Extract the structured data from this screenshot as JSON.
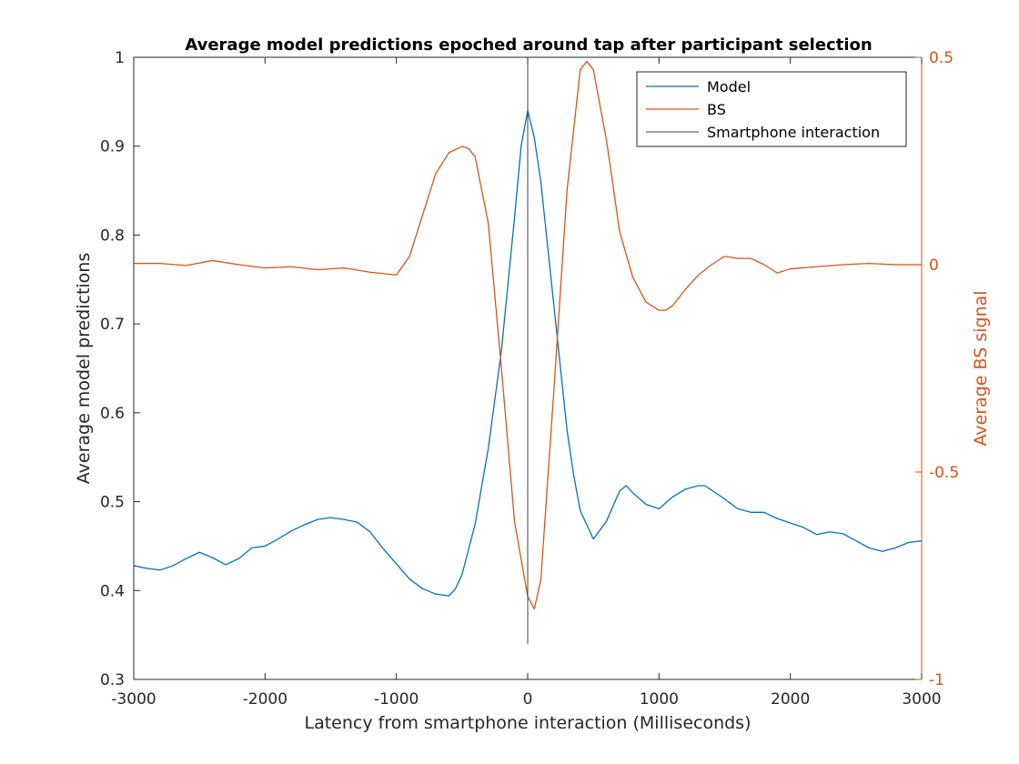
{
  "chart_data": {
    "type": "line",
    "title": "Average model predictions epoched around tap after participant selection",
    "xlabel": "Latency from smartphone interaction (Milliseconds)",
    "ylabel_left": "Average model predictions",
    "ylabel_right": "Average BS signal",
    "xlim": [
      -3000,
      3000
    ],
    "ylim_left": [
      0.3,
      1.0
    ],
    "ylim_right": [
      -1.0,
      0.5
    ],
    "xticks": [
      -3000,
      -2000,
      -1000,
      0,
      1000,
      2000,
      3000
    ],
    "yticks_left": [
      0.3,
      0.4,
      0.5,
      0.6,
      0.7,
      0.8,
      0.9,
      1.0
    ],
    "yticks_left_labels": [
      "0.3",
      "0.4",
      "0.5",
      "0.6",
      "0.7",
      "0.8",
      "0.9",
      "1"
    ],
    "yticks_right": [
      -1.0,
      -0.5,
      0.0,
      0.5
    ],
    "yticks_right_labels": [
      "-1",
      "-0.5",
      "0",
      "0.5"
    ],
    "legend_placement": "top-right",
    "grid": false,
    "colors": {
      "model": "#0072BD",
      "bs": "#D95319",
      "interaction": "#404040",
      "right_axis": "#D95319"
    },
    "series": [
      {
        "name": "Model",
        "axis": "left",
        "x": [
          -3000,
          -2900,
          -2800,
          -2700,
          -2600,
          -2500,
          -2400,
          -2300,
          -2200,
          -2100,
          -2000,
          -1900,
          -1800,
          -1700,
          -1600,
          -1500,
          -1400,
          -1300,
          -1200,
          -1100,
          -1000,
          -900,
          -800,
          -700,
          -600,
          -550,
          -500,
          -400,
          -300,
          -200,
          -100,
          -50,
          0,
          50,
          100,
          200,
          300,
          350,
          400,
          500,
          600,
          700,
          750,
          800,
          900,
          1000,
          1100,
          1200,
          1300,
          1350,
          1400,
          1500,
          1600,
          1700,
          1800,
          1900,
          2000,
          2100,
          2200,
          2300,
          2400,
          2500,
          2600,
          2700,
          2800,
          2900,
          3000
        ],
        "y": [
          0.428,
          0.425,
          0.423,
          0.428,
          0.436,
          0.443,
          0.437,
          0.429,
          0.436,
          0.448,
          0.45,
          0.458,
          0.467,
          0.474,
          0.48,
          0.482,
          0.48,
          0.477,
          0.466,
          0.447,
          0.43,
          0.413,
          0.402,
          0.396,
          0.394,
          0.402,
          0.418,
          0.475,
          0.56,
          0.67,
          0.82,
          0.9,
          0.94,
          0.91,
          0.86,
          0.72,
          0.58,
          0.53,
          0.49,
          0.458,
          0.478,
          0.512,
          0.518,
          0.51,
          0.497,
          0.492,
          0.505,
          0.514,
          0.518,
          0.518,
          0.513,
          0.503,
          0.492,
          0.488,
          0.488,
          0.481,
          0.476,
          0.471,
          0.463,
          0.466,
          0.464,
          0.456,
          0.448,
          0.444,
          0.448,
          0.454,
          0.456
        ]
      },
      {
        "name": "BS",
        "axis": "right",
        "x": [
          -3000,
          -2800,
          -2600,
          -2400,
          -2200,
          -2000,
          -1800,
          -1600,
          -1400,
          -1200,
          -1000,
          -900,
          -800,
          -700,
          -600,
          -500,
          -450,
          -400,
          -300,
          -200,
          -100,
          0,
          50,
          100,
          200,
          300,
          400,
          450,
          500,
          600,
          700,
          800,
          900,
          1000,
          1050,
          1100,
          1200,
          1300,
          1400,
          1500,
          1600,
          1700,
          1800,
          1900,
          2000,
          2200,
          2400,
          2600,
          2800,
          3000
        ],
        "y": [
          0.003,
          0.003,
          -0.002,
          0.01,
          0.0,
          -0.008,
          -0.005,
          -0.012,
          -0.008,
          -0.018,
          -0.025,
          0.02,
          0.12,
          0.22,
          0.27,
          0.285,
          0.28,
          0.26,
          0.1,
          -0.25,
          -0.62,
          -0.8,
          -0.83,
          -0.76,
          -0.3,
          0.18,
          0.47,
          0.49,
          0.47,
          0.3,
          0.08,
          -0.03,
          -0.09,
          -0.11,
          -0.11,
          -0.1,
          -0.06,
          -0.025,
          0.0,
          0.02,
          0.015,
          0.015,
          0.0,
          -0.02,
          -0.01,
          -0.005,
          0.0,
          0.003,
          0.0,
          0.0
        ]
      },
      {
        "name": "Smartphone interaction",
        "axis": "left",
        "x": [
          0,
          0
        ],
        "y": [
          0.34,
          1.0
        ]
      }
    ]
  }
}
